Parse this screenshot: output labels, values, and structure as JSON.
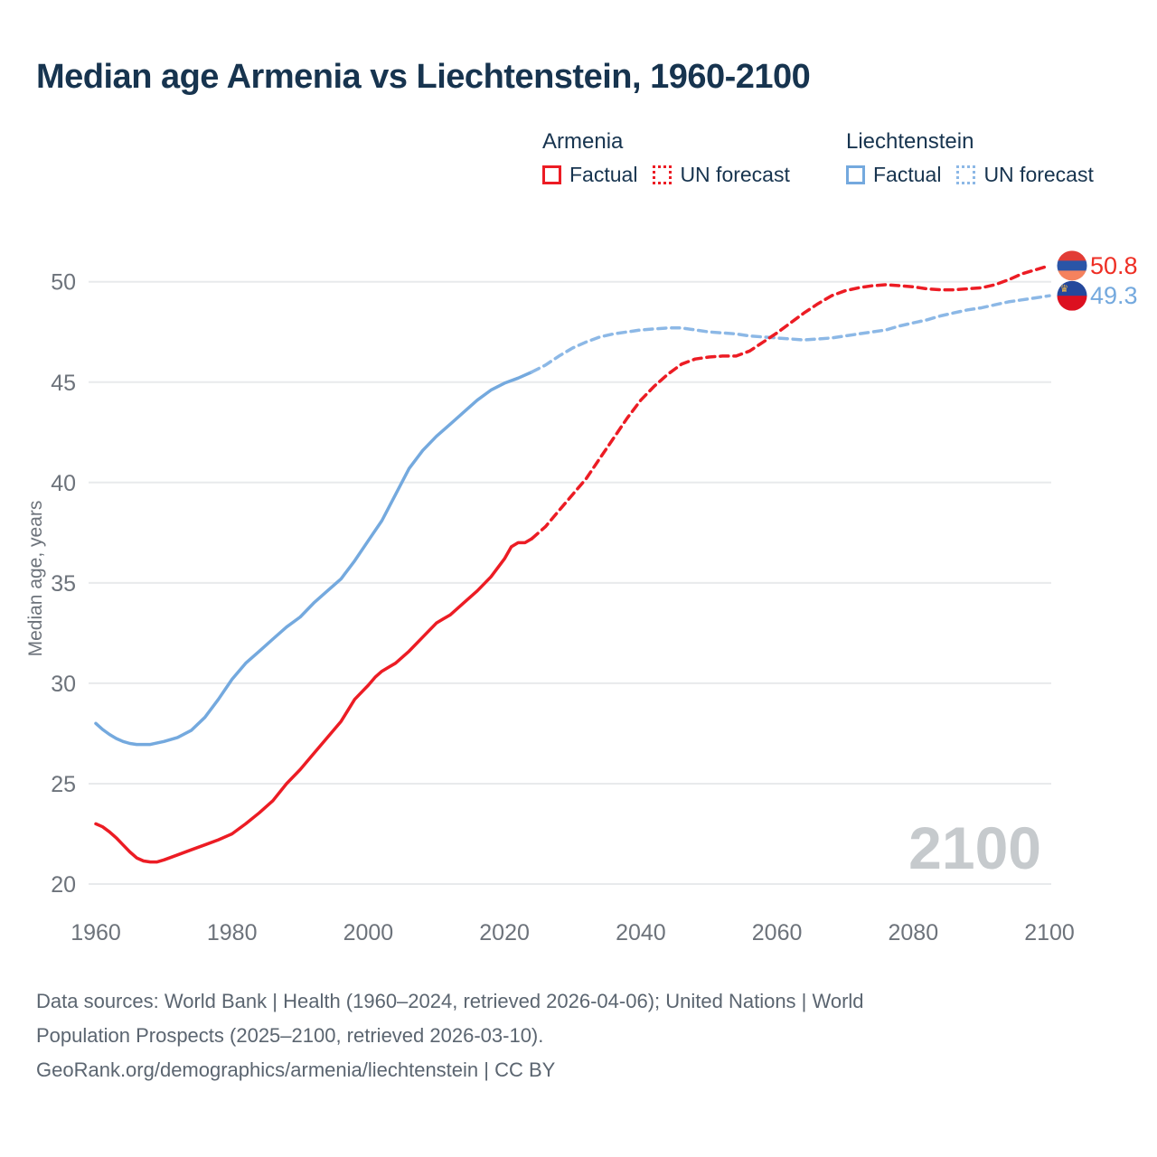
{
  "title": "Median age Armenia vs Liechtenstein, 1960-2100",
  "legend": {
    "groups": [
      {
        "name": "Armenia",
        "items": [
          {
            "label": "Factual",
            "style": "solid",
            "color": "#ec1c24"
          },
          {
            "label": "UN forecast",
            "style": "dotted",
            "color": "#ec1c24"
          }
        ]
      },
      {
        "name": "Liechtenstein",
        "items": [
          {
            "label": "Factual",
            "style": "solid",
            "color": "#74a9de"
          },
          {
            "label": "UN forecast",
            "style": "dotted",
            "color": "#8cb8e6"
          }
        ]
      }
    ]
  },
  "chart_data": {
    "type": "line",
    "title": "Median age Armenia vs Liechtenstein, 1960-2100",
    "xlabel": "",
    "ylabel": "Median age, years",
    "ylim": [
      18.5,
      52.5
    ],
    "xlim": [
      1953,
      2113
    ],
    "yticks": [
      20,
      25,
      30,
      35,
      40,
      45,
      50
    ],
    "xticks": [
      1960,
      1980,
      2000,
      2020,
      2040,
      2060,
      2080,
      2100
    ],
    "grid": "horizontal-only",
    "legend_position": "top-right",
    "watermark": "2100",
    "colors": {
      "armenia": "#ec1c24",
      "liechtenstein_factual": "#74a9de",
      "liechtenstein_forecast": "#8cb8e6",
      "gridline": "#e8eaec",
      "axis_text": "#6d737b",
      "watermark": "#c6cacd",
      "title_text": "#17344f",
      "footer_text": "#5b6570"
    },
    "series": [
      {
        "id": "liechtenstein-factual",
        "name": "Liechtenstein Factual",
        "color": "#74a9de",
        "dash": false,
        "points": [
          [
            1960,
            28.0
          ],
          [
            1961,
            27.7
          ],
          [
            1962,
            27.45
          ],
          [
            1963,
            27.25
          ],
          [
            1964,
            27.1
          ],
          [
            1965,
            27.0
          ],
          [
            1966,
            26.95
          ],
          [
            1968,
            26.95
          ],
          [
            1970,
            27.1
          ],
          [
            1972,
            27.3
          ],
          [
            1974,
            27.65
          ],
          [
            1976,
            28.3
          ],
          [
            1978,
            29.2
          ],
          [
            1980,
            30.2
          ],
          [
            1982,
            31.0
          ],
          [
            1984,
            31.6
          ],
          [
            1986,
            32.2
          ],
          [
            1988,
            32.8
          ],
          [
            1990,
            33.3
          ],
          [
            1992,
            34.0
          ],
          [
            1994,
            34.6
          ],
          [
            1996,
            35.2
          ],
          [
            1998,
            36.1
          ],
          [
            2000,
            37.1
          ],
          [
            2002,
            38.1
          ],
          [
            2004,
            39.4
          ],
          [
            2006,
            40.7
          ],
          [
            2008,
            41.6
          ],
          [
            2010,
            42.3
          ],
          [
            2012,
            42.9
          ],
          [
            2014,
            43.5
          ],
          [
            2016,
            44.1
          ],
          [
            2018,
            44.6
          ],
          [
            2020,
            44.95
          ],
          [
            2022,
            45.2
          ],
          [
            2024,
            45.5
          ]
        ]
      },
      {
        "id": "liechtenstein-forecast",
        "name": "Liechtenstein UN forecast",
        "color": "#8cb8e6",
        "dash": true,
        "points": [
          [
            2024,
            45.5
          ],
          [
            2026,
            45.85
          ],
          [
            2028,
            46.3
          ],
          [
            2030,
            46.7
          ],
          [
            2032,
            47.0
          ],
          [
            2034,
            47.25
          ],
          [
            2036,
            47.4
          ],
          [
            2038,
            47.5
          ],
          [
            2040,
            47.6
          ],
          [
            2042,
            47.65
          ],
          [
            2044,
            47.7
          ],
          [
            2046,
            47.7
          ],
          [
            2048,
            47.6
          ],
          [
            2050,
            47.5
          ],
          [
            2052,
            47.45
          ],
          [
            2054,
            47.4
          ],
          [
            2056,
            47.3
          ],
          [
            2058,
            47.25
          ],
          [
            2060,
            47.2
          ],
          [
            2062,
            47.15
          ],
          [
            2064,
            47.1
          ],
          [
            2066,
            47.15
          ],
          [
            2068,
            47.2
          ],
          [
            2070,
            47.3
          ],
          [
            2072,
            47.4
          ],
          [
            2074,
            47.5
          ],
          [
            2076,
            47.6
          ],
          [
            2078,
            47.8
          ],
          [
            2080,
            47.95
          ],
          [
            2082,
            48.1
          ],
          [
            2084,
            48.3
          ],
          [
            2086,
            48.45
          ],
          [
            2088,
            48.6
          ],
          [
            2090,
            48.7
          ],
          [
            2092,
            48.85
          ],
          [
            2094,
            49.0
          ],
          [
            2096,
            49.1
          ],
          [
            2098,
            49.2
          ],
          [
            2100,
            49.3
          ]
        ]
      },
      {
        "id": "armenia-factual",
        "name": "Armenia Factual",
        "color": "#ec1c24",
        "dash": false,
        "points": [
          [
            1960,
            23.0
          ],
          [
            1961,
            22.85
          ],
          [
            1962,
            22.6
          ],
          [
            1963,
            22.3
          ],
          [
            1964,
            21.95
          ],
          [
            1965,
            21.6
          ],
          [
            1966,
            21.3
          ],
          [
            1967,
            21.15
          ],
          [
            1968,
            21.1
          ],
          [
            1969,
            21.1
          ],
          [
            1970,
            21.2
          ],
          [
            1972,
            21.45
          ],
          [
            1974,
            21.7
          ],
          [
            1976,
            21.95
          ],
          [
            1978,
            22.2
          ],
          [
            1980,
            22.5
          ],
          [
            1982,
            23.0
          ],
          [
            1984,
            23.55
          ],
          [
            1986,
            24.15
          ],
          [
            1988,
            25.0
          ],
          [
            1990,
            25.7
          ],
          [
            1992,
            26.5
          ],
          [
            1994,
            27.3
          ],
          [
            1996,
            28.1
          ],
          [
            1998,
            29.2
          ],
          [
            2000,
            29.9
          ],
          [
            2001,
            30.3
          ],
          [
            2002,
            30.6
          ],
          [
            2003,
            30.8
          ],
          [
            2004,
            31.0
          ],
          [
            2006,
            31.6
          ],
          [
            2008,
            32.3
          ],
          [
            2010,
            33.0
          ],
          [
            2011,
            33.2
          ],
          [
            2012,
            33.4
          ],
          [
            2014,
            34.0
          ],
          [
            2016,
            34.6
          ],
          [
            2018,
            35.3
          ],
          [
            2020,
            36.2
          ],
          [
            2021,
            36.8
          ],
          [
            2022,
            37.0
          ],
          [
            2023,
            37.0
          ],
          [
            2024,
            37.2
          ]
        ]
      },
      {
        "id": "armenia-forecast",
        "name": "Armenia UN forecast",
        "color": "#ec1c24",
        "dash": true,
        "points": [
          [
            2024,
            37.2
          ],
          [
            2026,
            37.8
          ],
          [
            2028,
            38.6
          ],
          [
            2030,
            39.4
          ],
          [
            2032,
            40.2
          ],
          [
            2034,
            41.2
          ],
          [
            2036,
            42.2
          ],
          [
            2038,
            43.2
          ],
          [
            2040,
            44.1
          ],
          [
            2042,
            44.8
          ],
          [
            2044,
            45.4
          ],
          [
            2046,
            45.9
          ],
          [
            2048,
            46.15
          ],
          [
            2050,
            46.25
          ],
          [
            2052,
            46.3
          ],
          [
            2054,
            46.3
          ],
          [
            2056,
            46.55
          ],
          [
            2058,
            47.0
          ],
          [
            2060,
            47.45
          ],
          [
            2062,
            47.95
          ],
          [
            2064,
            48.45
          ],
          [
            2066,
            48.9
          ],
          [
            2068,
            49.3
          ],
          [
            2070,
            49.55
          ],
          [
            2072,
            49.7
          ],
          [
            2074,
            49.8
          ],
          [
            2076,
            49.85
          ],
          [
            2078,
            49.8
          ],
          [
            2080,
            49.75
          ],
          [
            2082,
            49.65
          ],
          [
            2084,
            49.6
          ],
          [
            2086,
            49.6
          ],
          [
            2088,
            49.65
          ],
          [
            2090,
            49.7
          ],
          [
            2092,
            49.85
          ],
          [
            2094,
            50.1
          ],
          [
            2096,
            50.4
          ],
          [
            2098,
            50.6
          ],
          [
            2100,
            50.8
          ]
        ]
      }
    ],
    "end_labels": [
      {
        "series": "Armenia",
        "flag": "armenia",
        "value": "50.8",
        "color": "#ee2e24",
        "flag_colors": [
          "#e23c36",
          "#2a55a7",
          "#f5825e"
        ]
      },
      {
        "series": "Liechtenstein",
        "flag": "liechtenstein",
        "value": "49.3",
        "color": "#74a9de",
        "flag_colors": [
          "#24489c",
          "#dc1020"
        ],
        "crown_color": "#f0b84a"
      }
    ]
  },
  "footer": {
    "lines": [
      "Data sources: World Bank | Health (1960–2024, retrieved 2026-04-06); United Nations | World",
      "Population Prospects (2025–2100, retrieved 2026-03-10).",
      "GeoRank.org/demographics/armenia/liechtenstein | CC BY"
    ]
  }
}
